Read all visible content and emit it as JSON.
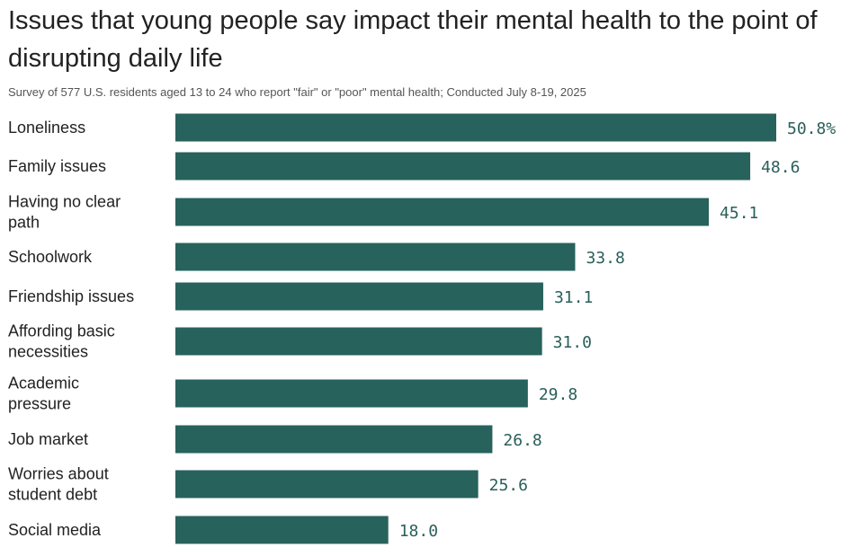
{
  "title": "Issues that young people say impact their mental health to the point of disrupting daily life",
  "subtitle": "Survey of 577 U.S. residents aged 13 to 24 who report \"fair\" or \"poor\" mental health; Conducted July 8-19, 2025",
  "colors": {
    "bar": "#27625c",
    "value_text": "#2a5f5a",
    "label_text": "#222222"
  },
  "chart_data": {
    "type": "bar",
    "orientation": "horizontal",
    "title": "Issues that young people say impact their mental health to the point of disrupting daily life",
    "unit": "%",
    "categories": [
      [
        "Loneliness"
      ],
      [
        "Family issues"
      ],
      [
        "Having no clear",
        "path"
      ],
      [
        "Schoolwork"
      ],
      [
        "Friendship issues"
      ],
      [
        "Affording basic",
        "necessities"
      ],
      [
        "Academic",
        "pressure"
      ],
      [
        "Job market"
      ],
      [
        "Worries about",
        "student debt"
      ],
      [
        "Social media"
      ]
    ],
    "values": [
      50.8,
      48.6,
      45.1,
      33.8,
      31.1,
      31.0,
      29.8,
      26.8,
      25.6,
      18.0
    ],
    "value_labels": [
      "50.8%",
      "48.6",
      "45.1",
      "33.8",
      "31.1",
      "31.0",
      "29.8",
      "26.8",
      "25.6",
      "18.0"
    ],
    "xlim": [
      0,
      50.8
    ]
  }
}
